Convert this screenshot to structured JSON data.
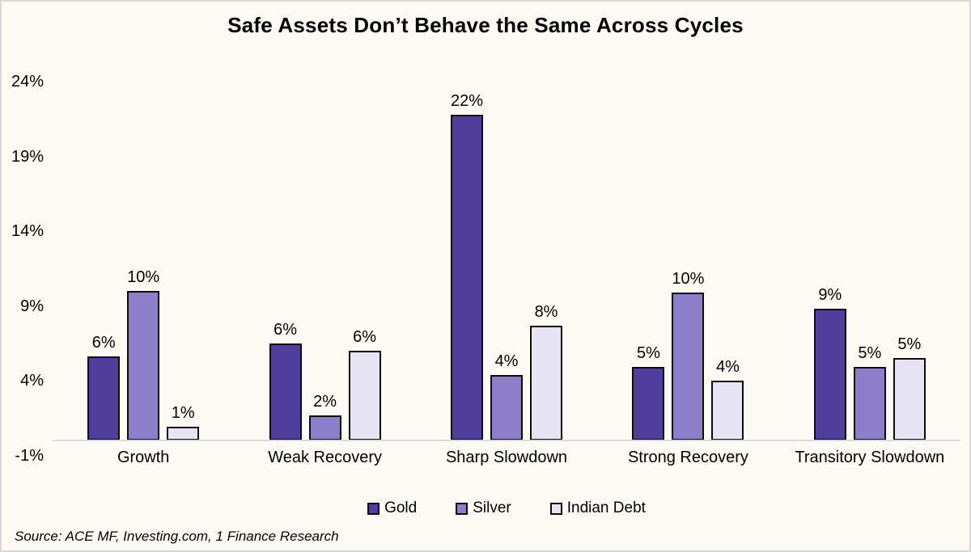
{
  "window": {
    "background_color": "#FCFAF2",
    "border_color": "#D7D7D9",
    "axis_line_color": "#D9D9D9",
    "bar_outline_color": "#0D0D0D"
  },
  "chart_data": {
    "type": "bar",
    "title": "Safe Assets Don’t Behave the Same Across Cycles",
    "categories": [
      "Growth",
      "Weak Recovery",
      "Sharp Slowdown",
      "Strong Recovery",
      "Transitory Slowdown"
    ],
    "series": [
      {
        "name": "Gold",
        "color": "#503E9C",
        "values": [
          5.6,
          6.5,
          21.8,
          4.9,
          8.8
        ],
        "labels": [
          "6%",
          "6%",
          "22%",
          "5%",
          "9%"
        ]
      },
      {
        "name": "Silver",
        "color": "#8C7EC8",
        "values": [
          10.0,
          1.7,
          4.4,
          9.9,
          4.9
        ],
        "labels": [
          "10%",
          "2%",
          "4%",
          "10%",
          "5%"
        ]
      },
      {
        "name": "Indian Debt",
        "color": "#E6E4F3",
        "values": [
          0.9,
          6.0,
          7.7,
          4.0,
          5.5
        ],
        "labels": [
          "1%",
          "6%",
          "8%",
          "4%",
          "5%"
        ]
      }
    ],
    "y_ticks": [
      {
        "label": "24%",
        "value": 24
      },
      {
        "label": "19%",
        "value": 19
      },
      {
        "label": "14%",
        "value": 14
      },
      {
        "label": "9%",
        "value": 9
      },
      {
        "label": "4%",
        "value": 4
      },
      {
        "label": "-1%",
        "value": -1
      }
    ],
    "ylim": [
      -1,
      24
    ],
    "grid": false,
    "legend_position": "bottom",
    "source_note": "Source: ACE MF, Investing.com, 1 Finance Research"
  }
}
